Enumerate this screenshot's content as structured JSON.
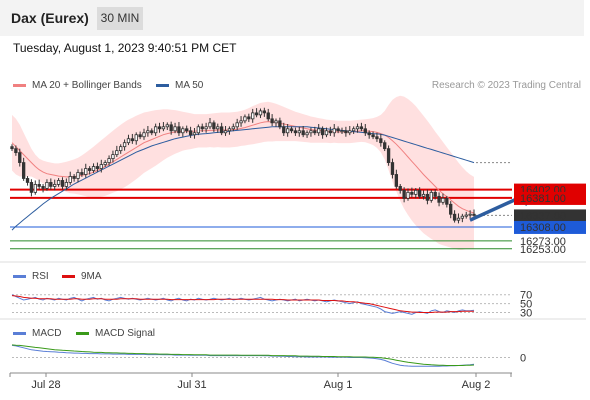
{
  "header": {
    "title": "Dax (Eurex)",
    "timeframe": "30 MIN"
  },
  "datetime": "Tuesday, August 1, 2023 9:40:51 PM CET",
  "credit": "Research © 2023 Trading Central",
  "colors": {
    "up_candle": "#ffffff",
    "down_candle": "#333333",
    "bollinger_fill": "#ffd6d6",
    "ma20": "#f08080",
    "ma50": "#2d5d9f",
    "resistance": "#e00000",
    "support_blue": "#1e5bd8",
    "support_green": "#2a8a2a",
    "current_price": "#333333",
    "rsi": "#5a7ed6",
    "rsi_9ma": "#dd1111",
    "macd": "#5a7ed6",
    "macd_signal": "#3a9a1a",
    "arrow": "#2d5d9f"
  },
  "chart_data": [
    {
      "type": "candlestick",
      "title": "",
      "legend": [
        {
          "label": "MA 20 + Bollinger Bands",
          "color": "#f08080"
        },
        {
          "label": "MA 50",
          "color": "#2d5d9f"
        }
      ],
      "x_ticks": [
        "Jul 28",
        "Jul 31",
        "Aug 1",
        "Aug 2"
      ],
      "ylim": [
        16250,
        16640
      ],
      "levels": [
        {
          "label": "16402.00",
          "value": 16402,
          "style": "resistance"
        },
        {
          "label": "16381.00",
          "value": 16381,
          "style": "resistance"
        },
        {
          "label": "16337.00",
          "value": 16337,
          "style": "current"
        },
        {
          "label": "16308.00",
          "value": 16308,
          "style": "support_blue"
        },
        {
          "label": "16273.00",
          "value": 16273,
          "style": "support_green"
        },
        {
          "label": "16253.00",
          "value": 16253,
          "style": "support_green"
        }
      ],
      "closes": [
        16505,
        16495,
        16470,
        16430,
        16420,
        16395,
        16415,
        16410,
        16405,
        16420,
        16410,
        16415,
        16425,
        16410,
        16420,
        16435,
        16430,
        16445,
        16440,
        16455,
        16450,
        16460,
        16455,
        16465,
        16470,
        16480,
        16490,
        16500,
        16510,
        16520,
        16530,
        16525,
        16540,
        16535,
        16545,
        16550,
        16545,
        16560,
        16555,
        16560,
        16565,
        16550,
        16560,
        16545,
        16555,
        16550,
        16540,
        16545,
        16560,
        16555,
        16560,
        16570,
        16555,
        16560,
        16545,
        16550,
        16555,
        16560,
        16570,
        16575,
        16585,
        16580,
        16595,
        16590,
        16600,
        16595,
        16580,
        16570,
        16575,
        16560,
        16545,
        16555,
        16550,
        16545,
        16550,
        16540,
        16545,
        16550,
        16545,
        16555,
        16540,
        16550,
        16545,
        16555,
        16550,
        16550,
        16545,
        16550,
        16555,
        16560,
        16555,
        16545,
        16540,
        16535,
        16530,
        16520,
        16505,
        16470,
        16440,
        16410,
        16400,
        16380,
        16395,
        16390,
        16400,
        16385,
        16390,
        16375,
        16395,
        16385,
        16370,
        16380,
        16365,
        16340,
        16325,
        16330,
        16335,
        16338,
        16340,
        16337
      ],
      "ma20": [
        16520,
        16510,
        16500,
        16490,
        16480,
        16470,
        16460,
        16452,
        16446,
        16442,
        16440,
        16438,
        16436,
        16435,
        16434,
        16434,
        16435,
        16436,
        16438,
        16440,
        16442,
        16446,
        16450,
        16455,
        16460,
        16466,
        16472,
        16478,
        16484,
        16490,
        16496,
        16502,
        16508,
        16514,
        16520,
        16524,
        16528,
        16532,
        16536,
        16540,
        16543,
        16545,
        16547,
        16548,
        16549,
        16549,
        16549,
        16549,
        16550,
        16550,
        16550,
        16551,
        16551,
        16552,
        16552,
        16552,
        16552,
        16553,
        16554,
        16556,
        16558,
        16561,
        16564,
        16567,
        16570,
        16572,
        16573,
        16572,
        16571,
        16569,
        16567,
        16565,
        16563,
        16561,
        16559,
        16557,
        16555,
        16553,
        16552,
        16551,
        16550,
        16549,
        16548,
        16548,
        16547,
        16547,
        16547,
        16547,
        16548,
        16549,
        16550,
        16550,
        16549,
        16548,
        16546,
        16543,
        16539,
        16533,
        16525,
        16516,
        16506,
        16495,
        16484,
        16473,
        16462,
        16451,
        16440,
        16430,
        16420,
        16410,
        16400,
        16392,
        16384,
        16376,
        16368,
        16360,
        16354,
        16350,
        16346,
        16343
      ],
      "ma50": [
        16300,
        16310,
        16318,
        16326,
        16334,
        16342,
        16350,
        16358,
        16366,
        16373,
        16380,
        16386,
        16392,
        16398,
        16404,
        16410,
        16416,
        16421,
        16426,
        16431,
        16436,
        16441,
        16446,
        16451,
        16456,
        16461,
        16466,
        16471,
        16476,
        16481,
        16486,
        16491,
        16496,
        16500,
        16504,
        16508,
        16512,
        16515,
        16518,
        16521,
        16524,
        16527,
        16530,
        16532,
        16534,
        16536,
        16538,
        16540,
        16541,
        16542,
        16543,
        16544,
        16545,
        16546,
        16547,
        16548,
        16549,
        16550,
        16551,
        16552,
        16553,
        16554,
        16555,
        16556,
        16557,
        16558,
        16559,
        16560,
        16560,
        16560,
        16560,
        16560,
        16560,
        16560,
        16560,
        16560,
        16560,
        16559,
        16558,
        16557,
        16556,
        16555,
        16554,
        16553,
        16552,
        16551,
        16550,
        16549,
        16548,
        16547,
        16546,
        16545,
        16544,
        16543,
        16542,
        16541,
        16539,
        16536,
        16533,
        16530,
        16527,
        16524,
        16521,
        16518,
        16515,
        16512,
        16509,
        16506,
        16503,
        16500,
        16497,
        16494,
        16491,
        16488,
        16485,
        16482,
        16479,
        16476,
        16473,
        16470
      ],
      "bb_upper": [
        16590,
        16580,
        16565,
        16545,
        16525,
        16505,
        16490,
        16480,
        16475,
        16472,
        16470,
        16468,
        16468,
        16470,
        16472,
        16475,
        16478,
        16482,
        16488,
        16495,
        16502,
        16510,
        16518,
        16526,
        16534,
        16542,
        16550,
        16558,
        16565,
        16572,
        16578,
        16583,
        16588,
        16592,
        16596,
        16598,
        16600,
        16602,
        16603,
        16604,
        16604,
        16603,
        16602,
        16600,
        16598,
        16596,
        16594,
        16592,
        16592,
        16592,
        16592,
        16593,
        16594,
        16595,
        16596,
        16596,
        16596,
        16597,
        16598,
        16600,
        16603,
        16607,
        16612,
        16616,
        16620,
        16622,
        16623,
        16621,
        16618,
        16614,
        16610,
        16606,
        16602,
        16598,
        16595,
        16592,
        16589,
        16586,
        16584,
        16582,
        16580,
        16578,
        16577,
        16576,
        16575,
        16575,
        16575,
        16575,
        16576,
        16577,
        16578,
        16579,
        16580,
        16582,
        16585,
        16590,
        16600,
        16615,
        16628,
        16635,
        16638,
        16636,
        16630,
        16622,
        16612,
        16600,
        16588,
        16575,
        16562,
        16548,
        16535,
        16522,
        16509,
        16496,
        16483,
        16470,
        16458,
        16448,
        16440,
        16434
      ],
      "bb_lower": [
        16450,
        16440,
        16435,
        16435,
        16435,
        16435,
        16430,
        16424,
        16417,
        16412,
        16410,
        16408,
        16404,
        16400,
        16396,
        16393,
        16392,
        16390,
        16388,
        16385,
        16382,
        16382,
        16382,
        16384,
        16386,
        16390,
        16394,
        16398,
        16403,
        16408,
        16414,
        16421,
        16428,
        16436,
        16444,
        16450,
        16456,
        16462,
        16469,
        16476,
        16482,
        16487,
        16492,
        16496,
        16500,
        16502,
        16504,
        16506,
        16508,
        16508,
        16508,
        16509,
        16508,
        16509,
        16508,
        16508,
        16508,
        16509,
        16510,
        16512,
        16513,
        16515,
        16516,
        16518,
        16520,
        16522,
        16523,
        16523,
        16524,
        16524,
        16524,
        16524,
        16524,
        16524,
        16523,
        16522,
        16521,
        16520,
        16520,
        16520,
        16520,
        16520,
        16519,
        16520,
        16519,
        16519,
        16519,
        16519,
        16520,
        16521,
        16522,
        16521,
        16518,
        16514,
        16507,
        16496,
        16478,
        16451,
        16422,
        16397,
        16374,
        16354,
        16338,
        16324,
        16312,
        16302,
        16292,
        16285,
        16278,
        16272,
        16265,
        16262,
        16259,
        16256,
        16253,
        16250,
        16250,
        16252,
        16252,
        16252
      ],
      "projection_arrow": {
        "from": [
          119,
          16325
        ],
        "to": [
          126,
          16395
        ]
      }
    },
    {
      "type": "line",
      "title": "",
      "legend": [
        {
          "label": "RSI",
          "color": "#5a7ed6"
        },
        {
          "label": "9MA",
          "color": "#dd1111"
        }
      ],
      "y_ticks": [
        "70",
        "50",
        "30"
      ],
      "ylim": [
        20,
        85
      ],
      "rsi": [
        70,
        66,
        62,
        58,
        60,
        62,
        64,
        60,
        58,
        62,
        60,
        58,
        62,
        60,
        58,
        62,
        64,
        60,
        56,
        60,
        62,
        64,
        60,
        62,
        58,
        56,
        60,
        62,
        64,
        62,
        60,
        62,
        60,
        58,
        60,
        62,
        60,
        58,
        60,
        62,
        58,
        56,
        60,
        62,
        58,
        56,
        60,
        58,
        62,
        60,
        58,
        60,
        62,
        60,
        58,
        60,
        62,
        58,
        60,
        62,
        60,
        58,
        60,
        62,
        64,
        60,
        58,
        56,
        58,
        60,
        58,
        56,
        58,
        60,
        56,
        58,
        60,
        58,
        56,
        58,
        56,
        54,
        56,
        58,
        56,
        54,
        52,
        50,
        52,
        54,
        50,
        48,
        46,
        44,
        42,
        38,
        32,
        30,
        28,
        30,
        32,
        30,
        28,
        26,
        30,
        32,
        30,
        28,
        34,
        36,
        32,
        30,
        34,
        32,
        30,
        34,
        36,
        34,
        34,
        35
      ],
      "ma9": [
        68,
        67,
        66,
        64,
        63,
        62,
        62,
        61,
        61,
        61,
        61,
        60,
        60,
        60,
        60,
        60,
        61,
        61,
        60,
        60,
        60,
        61,
        61,
        61,
        60,
        60,
        60,
        60,
        61,
        61,
        61,
        61,
        61,
        60,
        60,
        60,
        60,
        60,
        60,
        60,
        60,
        59,
        59,
        59,
        59,
        59,
        59,
        59,
        59,
        59,
        59,
        59,
        59,
        60,
        60,
        60,
        60,
        60,
        60,
        60,
        60,
        60,
        60,
        60,
        60,
        60,
        60,
        60,
        59,
        59,
        59,
        58,
        58,
        58,
        58,
        58,
        58,
        58,
        58,
        58,
        57,
        57,
        57,
        57,
        56,
        56,
        55,
        54,
        54,
        53,
        52,
        51,
        50,
        48,
        46,
        44,
        42,
        40,
        38,
        36,
        34,
        33,
        32,
        31,
        31,
        30,
        30,
        30,
        30,
        31,
        31,
        31,
        31,
        32,
        32,
        32,
        33,
        33,
        33,
        33
      ]
    },
    {
      "type": "line",
      "title": "",
      "legend": [
        {
          "label": "MACD",
          "color": "#5a7ed6"
        },
        {
          "label": "MACD Signal",
          "color": "#3a9a1a"
        }
      ],
      "y_ticks": [
        "0"
      ],
      "ylim": [
        -60,
        60
      ],
      "macd": [
        50,
        48,
        44,
        40,
        36,
        32,
        30,
        28,
        26,
        25,
        24,
        23,
        22,
        21,
        20,
        19,
        18,
        18,
        17,
        17,
        16,
        16,
        16,
        15,
        15,
        15,
        14,
        14,
        14,
        14,
        13,
        13,
        13,
        13,
        13,
        12,
        12,
        12,
        12,
        11,
        11,
        11,
        10,
        10,
        10,
        10,
        9,
        9,
        9,
        9,
        9,
        8,
        8,
        8,
        8,
        8,
        8,
        8,
        8,
        8,
        8,
        8,
        8,
        8,
        8,
        7,
        7,
        6,
        6,
        5,
        5,
        4,
        4,
        3,
        3,
        3,
        2,
        2,
        2,
        2,
        2,
        2,
        1,
        1,
        1,
        1,
        1,
        0,
        0,
        0,
        0,
        -1,
        -2,
        -3,
        -5,
        -8,
        -12,
        -18,
        -24,
        -28,
        -32,
        -34,
        -35,
        -36,
        -36,
        -36,
        -36,
        -36,
        -36,
        -36,
        -36,
        -35,
        -35,
        -34,
        -34,
        -33,
        -32,
        -31,
        -30,
        -28
      ],
      "signal": [
        52,
        51,
        50,
        48,
        46,
        44,
        42,
        40,
        38,
        36,
        34,
        32,
        31,
        30,
        29,
        28,
        27,
        26,
        25,
        24,
        23,
        22,
        21,
        21,
        20,
        20,
        19,
        19,
        18,
        18,
        17,
        17,
        16,
        16,
        16,
        15,
        15,
        15,
        14,
        14,
        14,
        13,
        13,
        13,
        12,
        12,
        12,
        11,
        11,
        11,
        11,
        10,
        10,
        10,
        10,
        10,
        10,
        10,
        10,
        9,
        9,
        9,
        9,
        9,
        9,
        9,
        9,
        8,
        8,
        8,
        8,
        7,
        7,
        7,
        6,
        6,
        6,
        5,
        5,
        5,
        4,
        4,
        4,
        4,
        3,
        3,
        3,
        3,
        2,
        2,
        2,
        2,
        1,
        1,
        0,
        -1,
        -3,
        -5,
        -8,
        -11,
        -14,
        -17,
        -20,
        -22,
        -24,
        -26,
        -28,
        -29,
        -30,
        -31,
        -32,
        -32,
        -33,
        -33,
        -33,
        -33,
        -33,
        -32,
        -32,
        -31
      ]
    }
  ]
}
